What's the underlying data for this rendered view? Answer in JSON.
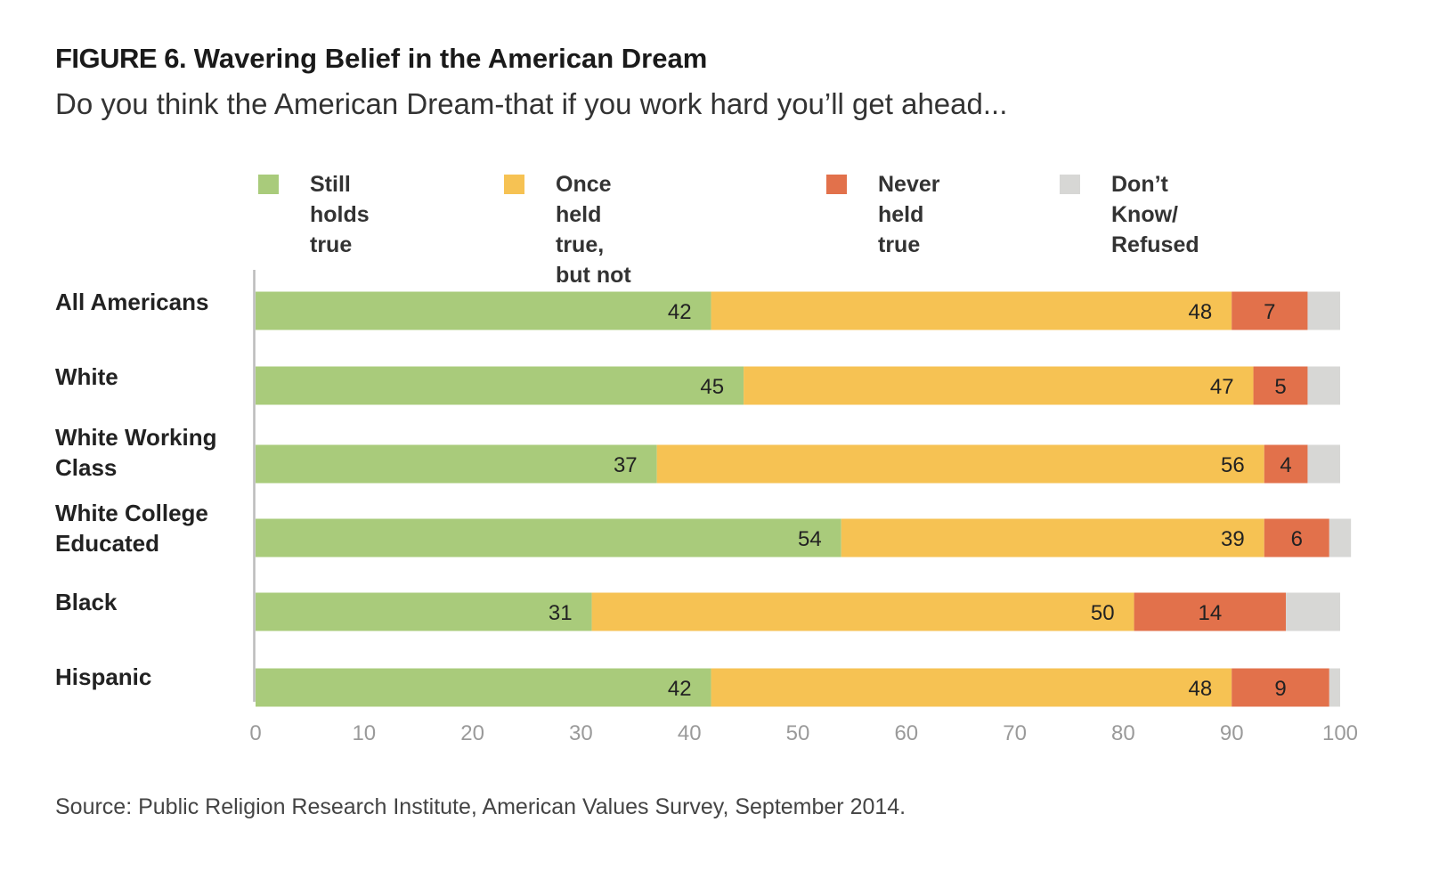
{
  "title": {
    "figure_label": "FIGURE 6.",
    "text": "Wavering Belief in the American Dream"
  },
  "subtitle": "Do you think the American Dream-that if you work hard you’ll get ahead...",
  "legend": [
    {
      "label": "Still holds\ntrue",
      "color": "#a9cb7b"
    },
    {
      "label": "Once held true,\nbut not anymore",
      "color": "#f6c253"
    },
    {
      "label": "Never\nheld true",
      "color": "#e2714b"
    },
    {
      "label": "Don’t Know/\nRefused",
      "color": "#d7d7d5"
    }
  ],
  "chart_data": {
    "type": "bar",
    "orientation": "horizontal",
    "stacked": true,
    "categories": [
      "All Americans",
      "White",
      "White Working\nClass",
      "White College\nEducated",
      "Black",
      "Hispanic"
    ],
    "series": [
      {
        "name": "Still holds true",
        "values": [
          42,
          45,
          37,
          54,
          31,
          42
        ],
        "color": "#a9cb7b"
      },
      {
        "name": "Once held true, but not anymore",
        "values": [
          48,
          47,
          56,
          39,
          50,
          48
        ],
        "color": "#f6c253"
      },
      {
        "name": "Never held true",
        "values": [
          7,
          5,
          4,
          6,
          14,
          9
        ],
        "color": "#e2714b"
      },
      {
        "name": "Don’t Know/ Refused",
        "values": [
          3,
          3,
          3,
          2,
          5,
          1
        ],
        "color": "#d7d7d5"
      }
    ],
    "labeled_series": [
      0,
      1,
      2
    ],
    "xlim": [
      0,
      100
    ],
    "xticks": [
      0,
      10,
      20,
      30,
      40,
      50,
      60,
      70,
      80,
      90,
      100
    ],
    "grid": false,
    "legend_position": "top"
  },
  "source": "Source: Public Religion Research Institute, American Values Survey, September 2014."
}
